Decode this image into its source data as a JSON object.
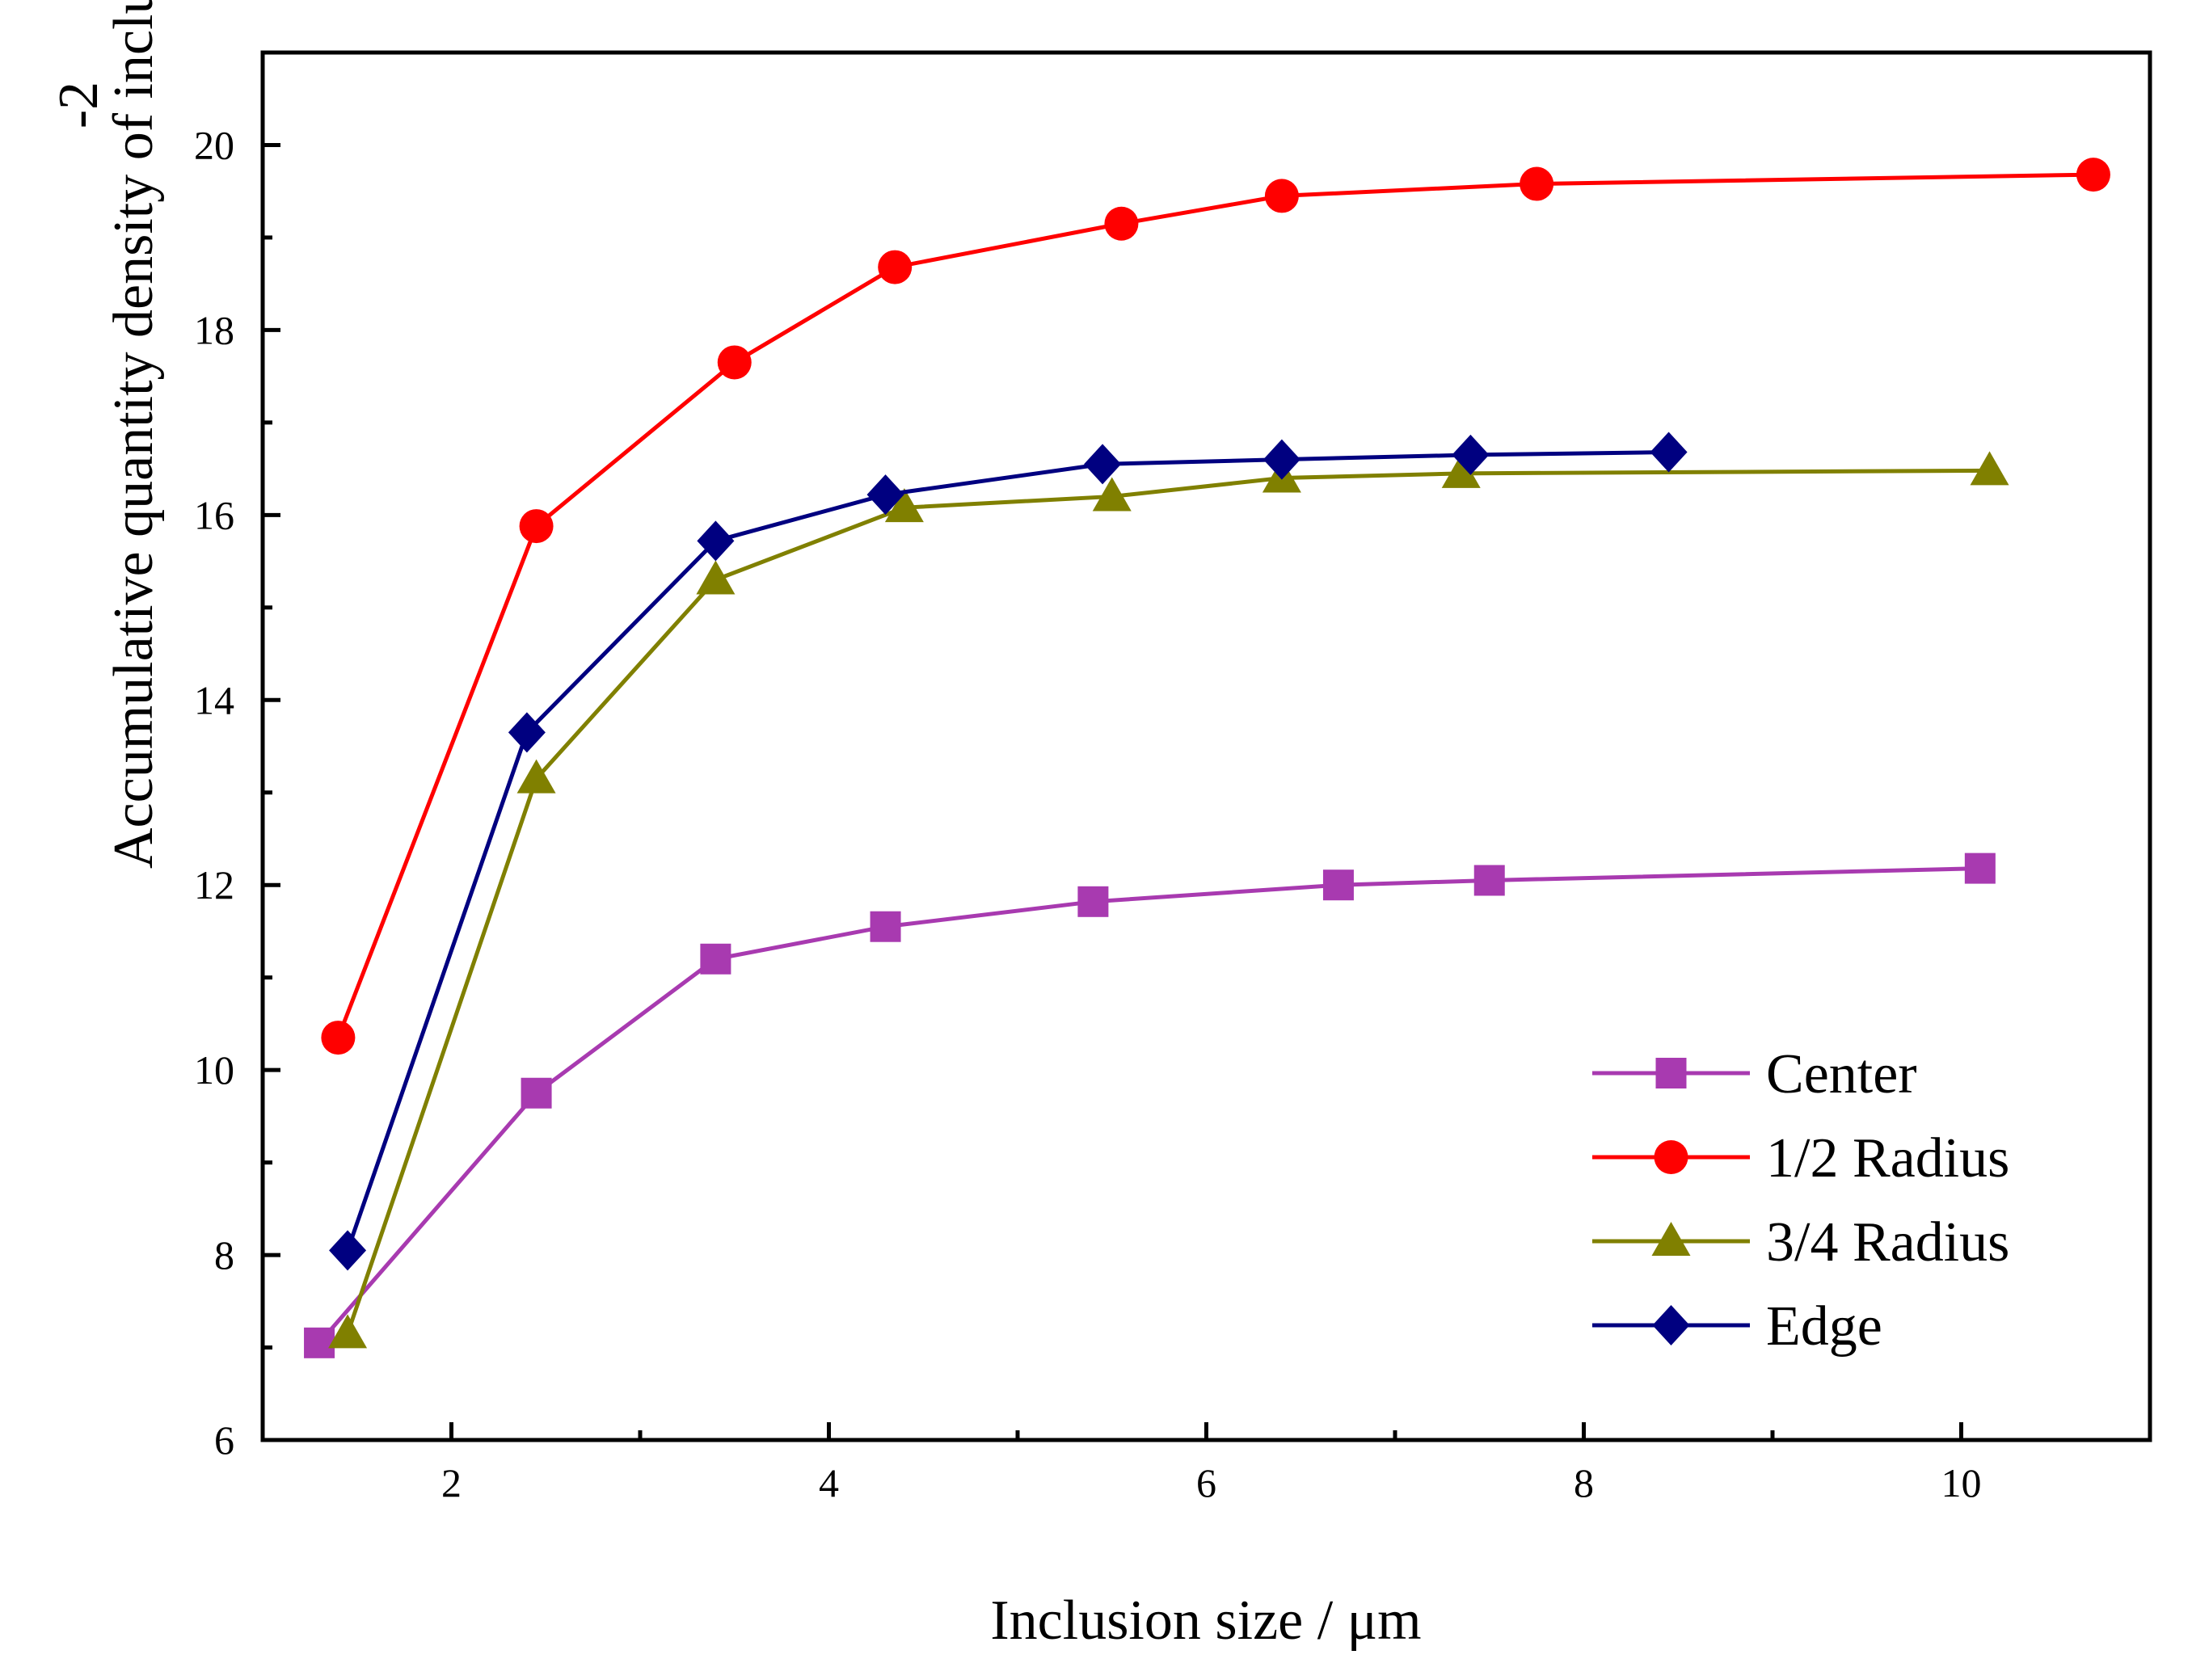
{
  "chart_data": {
    "type": "line",
    "title": "",
    "xlabel": "Inclusion size / μm",
    "ylabel": "Accumulative quantity density of inclusions / mm",
    "ylabel_superscript": "-2",
    "xlim": [
      1.0,
      11.0
    ],
    "ylim": [
      6,
      21
    ],
    "x_ticks": [
      2,
      4,
      6,
      8,
      10
    ],
    "x_minor_ticks": [
      3,
      5,
      7,
      9
    ],
    "y_ticks": [
      6,
      8,
      10,
      12,
      14,
      16,
      18,
      20
    ],
    "y_minor_ticks": [
      7,
      9,
      11,
      13,
      15,
      17,
      19
    ],
    "grid": false,
    "legend_position": "bottom-right",
    "series": [
      {
        "name": "Center",
        "color": "#a83ab0",
        "marker": "square",
        "x": [
          1.3,
          2.45,
          3.4,
          4.3,
          5.4,
          6.7,
          7.5,
          10.1
        ],
        "y": [
          7.05,
          9.75,
          11.2,
          11.55,
          11.82,
          12.0,
          12.05,
          12.18
        ]
      },
      {
        "name": "1/2 Radius",
        "color": "#ff0000",
        "marker": "circle",
        "x": [
          1.4,
          2.45,
          3.5,
          4.35,
          5.55,
          6.4,
          7.75,
          10.7
        ],
        "y": [
          10.35,
          15.88,
          17.65,
          18.68,
          19.15,
          19.45,
          19.58,
          19.68
        ]
      },
      {
        "name": "3/4 Radius",
        "color": "#808000",
        "marker": "triangle",
        "x": [
          1.45,
          2.45,
          3.4,
          4.4,
          5.5,
          6.4,
          7.35,
          10.15
        ],
        "y": [
          7.15,
          13.15,
          15.3,
          16.08,
          16.2,
          16.4,
          16.45,
          16.48
        ]
      },
      {
        "name": "Edge",
        "color": "#000080",
        "marker": "diamond",
        "x": [
          1.45,
          2.4,
          3.4,
          4.3,
          5.45,
          6.4,
          7.4,
          8.45
        ],
        "y": [
          8.05,
          13.65,
          15.72,
          16.22,
          16.55,
          16.6,
          16.65,
          16.68
        ]
      }
    ]
  }
}
